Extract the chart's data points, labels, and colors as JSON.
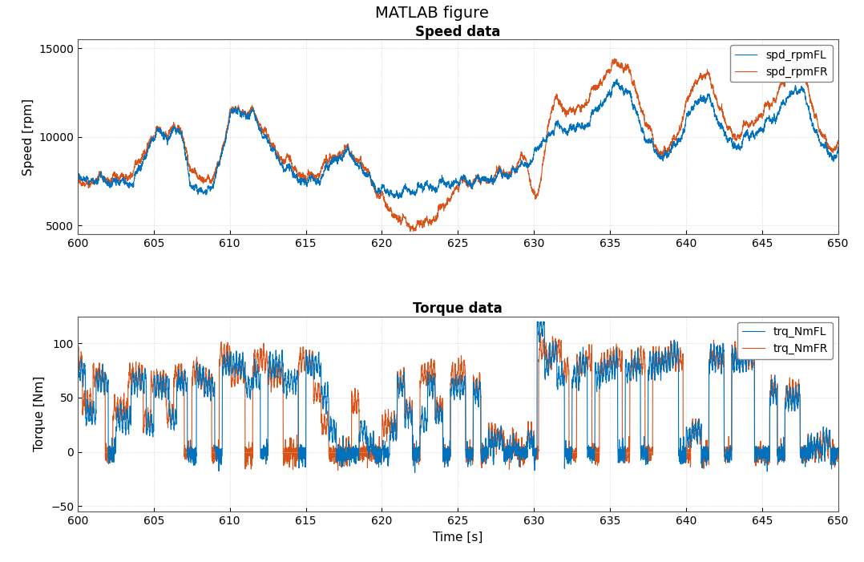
{
  "title": "MATLAB figure",
  "subplot1_title": "Speed data",
  "subplot2_title": "Torque data",
  "xlabel": "Time [s]",
  "ylabel1": "Speed [rpm]",
  "ylabel2": "Torque [Nm]",
  "legend1": [
    "spd_rpmFL",
    "spd_rpmFR"
  ],
  "legend2": [
    "trq_NmFL",
    "trq_NmFR"
  ],
  "color_FL": "#0072BD",
  "color_FR": "#D95319",
  "xlim": [
    600,
    650
  ],
  "ylim1": [
    4500,
    15500
  ],
  "ylim2": [
    -55,
    125
  ],
  "yticks1": [
    5000,
    10000,
    15000
  ],
  "yticks2": [
    -50,
    0,
    50,
    100
  ],
  "xticks": [
    600,
    605,
    610,
    615,
    620,
    625,
    630,
    635,
    640,
    645,
    650
  ],
  "background_color": "#ffffff",
  "grid_color": "#d0d0d0",
  "title_fontsize": 14,
  "subtitle_fontsize": 12,
  "label_fontsize": 11,
  "tick_fontsize": 10,
  "line_width": 0.8
}
